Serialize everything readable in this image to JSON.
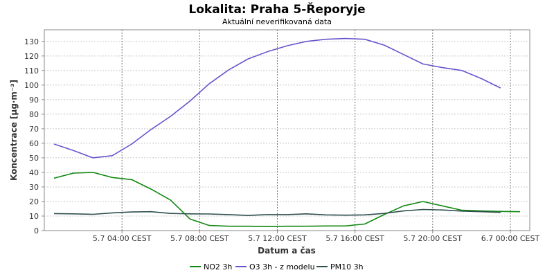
{
  "chart_data": {
    "type": "line",
    "title": "Lokalita: Praha 5-Řeporyje",
    "subtitle": "Aktuální neverifikovaná data",
    "xlabel": "Datum a čas",
    "ylabel": "Koncentrace [µg·m⁻³]",
    "ylim": [
      0,
      138
    ],
    "yticks": [
      0,
      10,
      20,
      30,
      40,
      50,
      60,
      70,
      80,
      90,
      100,
      110,
      120,
      130
    ],
    "xlim": [
      "2024-07-05T00:00",
      "2024-07-06T01:00"
    ],
    "xticks": [
      {
        "x": "2024-07-05T04:00",
        "label": "5.7 04:00 CEST"
      },
      {
        "x": "2024-07-05T08:00",
        "label": "5.7 08:00 CEST"
      },
      {
        "x": "2024-07-05T12:00",
        "label": "5.7 12:00 CEST"
      },
      {
        "x": "2024-07-05T16:00",
        "label": "5.7 16:00 CEST"
      },
      {
        "x": "2024-07-05T20:00",
        "label": "5.7 20:00 CEST"
      },
      {
        "x": "2024-07-06T00:00",
        "label": "6.7 00:00 CEST"
      }
    ],
    "grid": true,
    "legend_position": "bottom",
    "x": [
      "2024-07-05T00:30",
      "2024-07-05T01:30",
      "2024-07-05T02:30",
      "2024-07-05T03:30",
      "2024-07-05T04:30",
      "2024-07-05T05:30",
      "2024-07-05T06:30",
      "2024-07-05T07:30",
      "2024-07-05T08:30",
      "2024-07-05T09:30",
      "2024-07-05T10:30",
      "2024-07-05T11:30",
      "2024-07-05T12:30",
      "2024-07-05T13:30",
      "2024-07-05T14:30",
      "2024-07-05T15:30",
      "2024-07-05T16:30",
      "2024-07-05T17:30",
      "2024-07-05T18:30",
      "2024-07-05T19:30",
      "2024-07-05T20:30",
      "2024-07-05T21:30",
      "2024-07-05T22:30",
      "2024-07-05T23:30",
      "2024-07-06T00:30"
    ],
    "series": [
      {
        "name": "NO2 3h",
        "color": "#118811",
        "values": [
          36,
          39.5,
          40,
          36.5,
          35,
          28.5,
          21,
          8,
          3.5,
          3,
          3,
          2.8,
          3,
          3,
          3.2,
          3.2,
          4.5,
          11,
          17,
          20,
          17,
          14,
          13.5,
          13.2,
          13
        ]
      },
      {
        "name": "O3 3h - z modelu",
        "color": "#6655cc",
        "values": [
          59.5,
          55,
          50,
          51.5,
          59.5,
          69.5,
          78.5,
          89,
          101,
          110.5,
          118,
          123,
          127,
          130,
          131.5,
          132,
          131.5,
          127.5,
          121,
          114.5,
          112,
          110,
          104.5,
          98,
          null
        ]
      },
      {
        "name": "PM10 3h",
        "color": "#2f4f4f",
        "values": [
          11.7,
          11.5,
          11.2,
          12.2,
          12.8,
          13.0,
          11.8,
          11.5,
          11.4,
          11.0,
          10.4,
          11.0,
          11.0,
          11.5,
          10.8,
          10.6,
          10.8,
          11.8,
          13.5,
          14.5,
          14.2,
          13.4,
          13.0,
          12.5,
          null
        ]
      }
    ]
  }
}
